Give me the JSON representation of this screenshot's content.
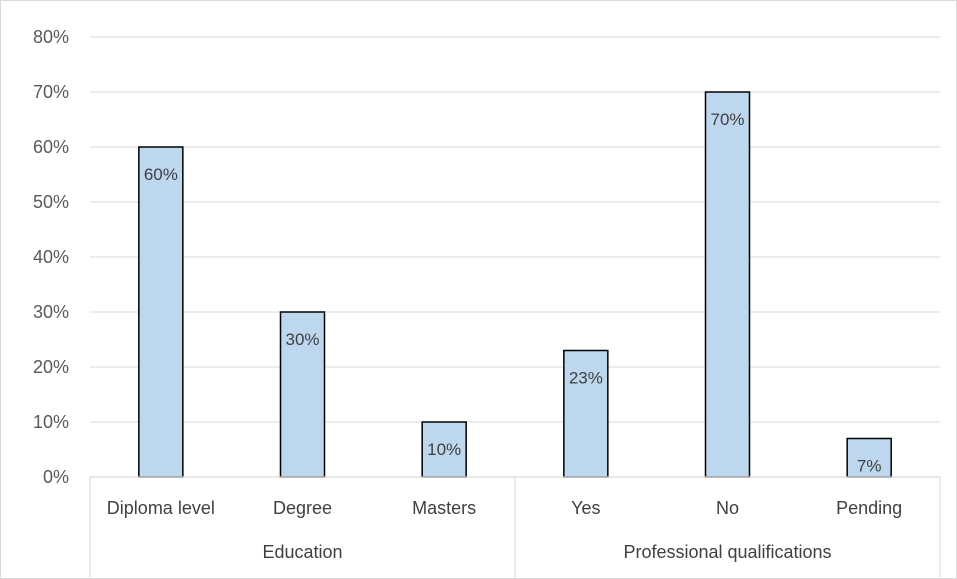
{
  "chart_data": {
    "type": "bar",
    "title": "",
    "xlabel": "",
    "ylabel": "",
    "ylim": [
      0,
      80
    ],
    "y_ticks": [
      0,
      10,
      20,
      30,
      40,
      50,
      60,
      70,
      80
    ],
    "y_tick_labels": [
      "0%",
      "10%",
      "20%",
      "30%",
      "40%",
      "50%",
      "60%",
      "70%",
      "80%"
    ],
    "grid": true,
    "legend": "none",
    "categories": [
      "Diploma level",
      "Degree",
      "Masters",
      "Yes",
      "No",
      "Pending"
    ],
    "values": [
      60,
      30,
      10,
      23,
      70,
      7
    ],
    "data_labels": [
      "60%",
      "30%",
      "10%",
      "23%",
      "70%",
      "7%"
    ],
    "groups": [
      {
        "name": "Education",
        "categories": [
          "Diploma level",
          "Degree",
          "Masters"
        ]
      },
      {
        "name": "Professional qualifications",
        "categories": [
          "Yes",
          "No",
          "Pending"
        ]
      }
    ],
    "colors": {
      "bar_fill": "#bdd7ee",
      "bar_stroke": "#000000",
      "grid": "#d9d9d9",
      "axis": "#d9d9d9",
      "text": "#595959"
    }
  }
}
